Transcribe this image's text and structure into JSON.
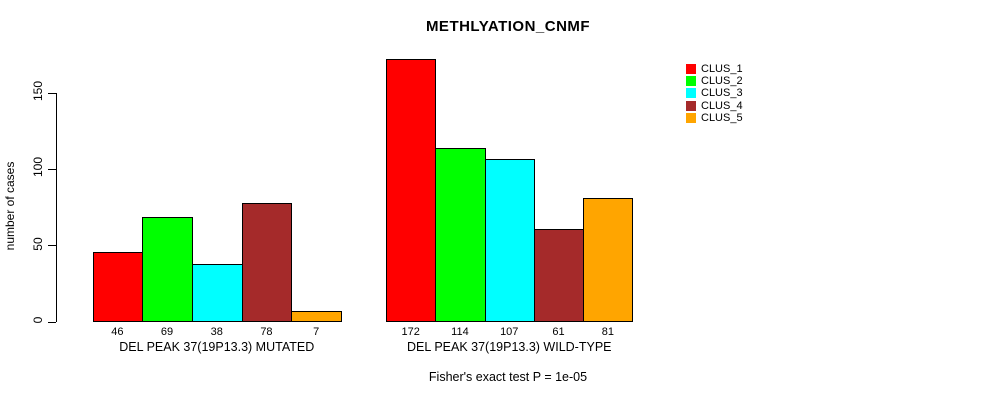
{
  "chart_data": {
    "type": "bar",
    "title": "METHLYATION_CNMF",
    "ylabel": "number of cases",
    "ylim": [
      0,
      175
    ],
    "yticks": [
      0,
      50,
      100,
      150
    ],
    "grid": false,
    "legend_position": "top-right",
    "bar_value_labels": true,
    "categories": [
      "DEL PEAK 37(19P13.3) MUTATED",
      "DEL PEAK 37(19P13.3) WILD-TYPE"
    ],
    "series": [
      {
        "name": "CLUS_1",
        "color": "#FF0000",
        "values": [
          46,
          172
        ]
      },
      {
        "name": "CLUS_2",
        "color": "#00FF00",
        "values": [
          69,
          114
        ]
      },
      {
        "name": "CLUS_3",
        "color": "#00FFFF",
        "values": [
          38,
          107
        ]
      },
      {
        "name": "CLUS_4",
        "color": "#A52A2A",
        "values": [
          78,
          61
        ]
      },
      {
        "name": "CLUS_5",
        "color": "#FFA500",
        "values": [
          7,
          81
        ]
      }
    ],
    "annotation": "Fisher's exact test P = 1e-05"
  }
}
